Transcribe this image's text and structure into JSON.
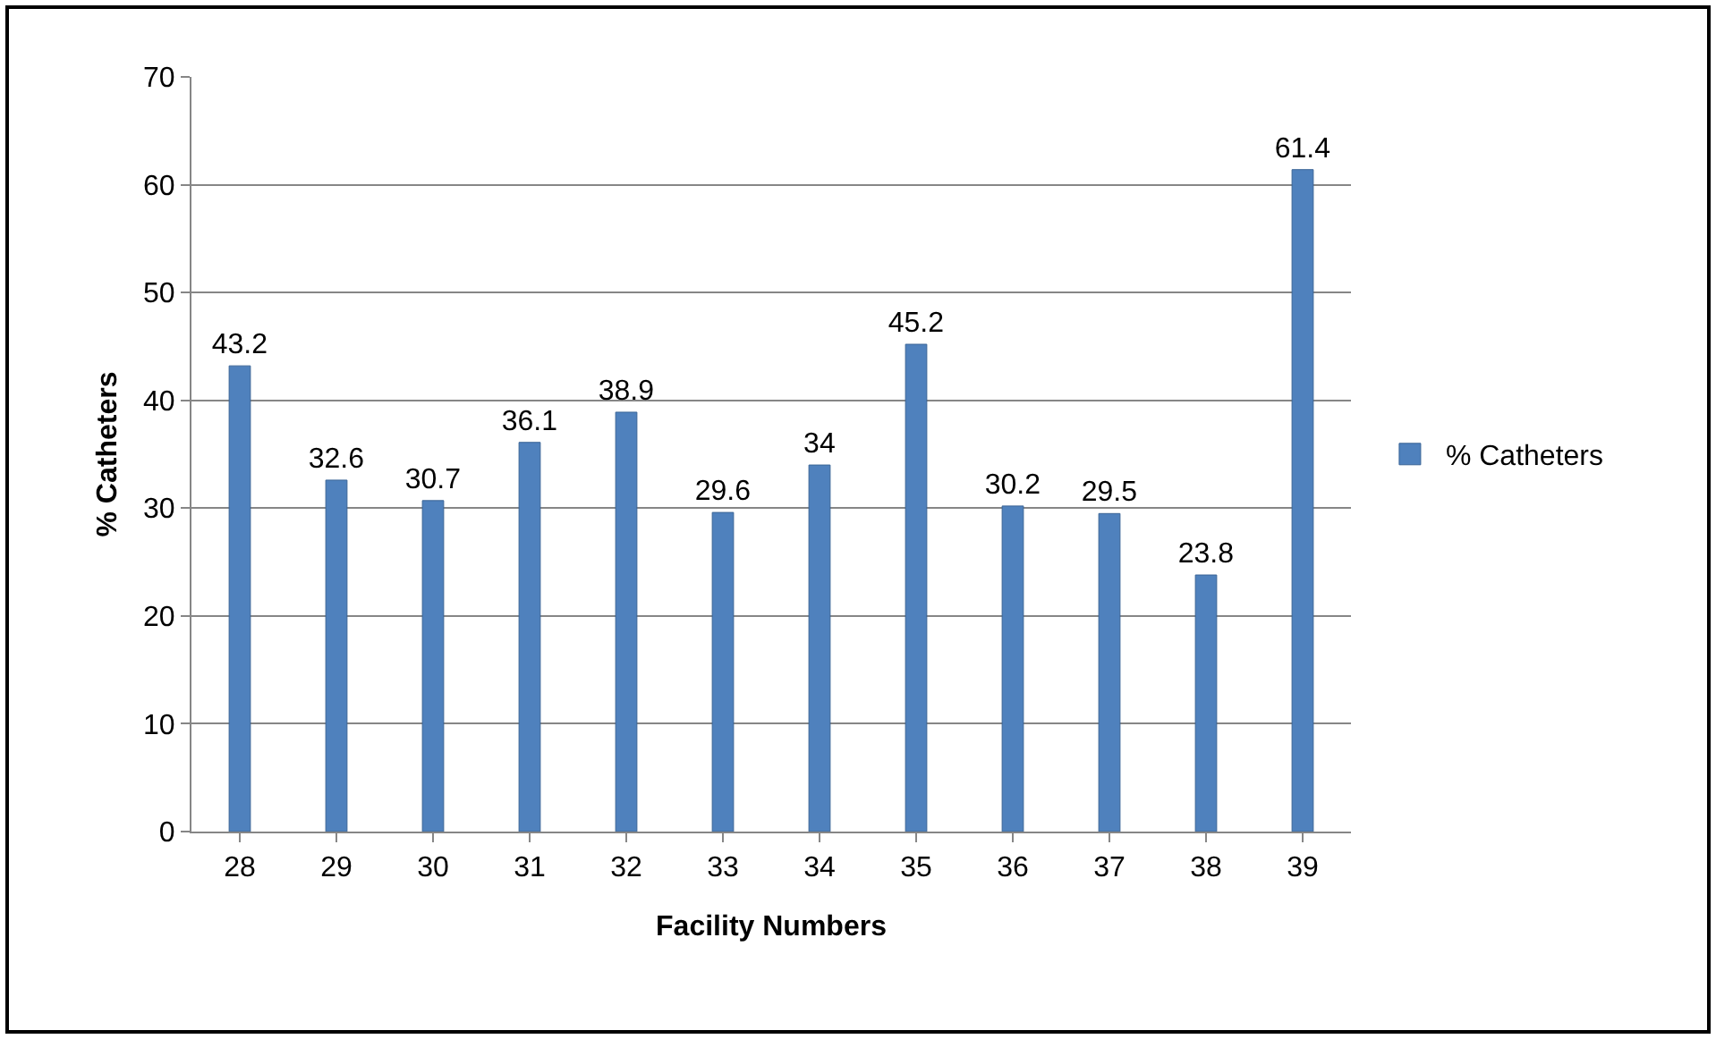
{
  "chart_data": {
    "type": "bar",
    "xlabel": "Facility Numbers",
    "ylabel": "% Catheters",
    "categories": [
      "28",
      "29",
      "30",
      "31",
      "32",
      "33",
      "34",
      "35",
      "36",
      "37",
      "38",
      "39"
    ],
    "series": [
      {
        "name": "% Catheters",
        "color": "#4f81bd",
        "values": [
          43.2,
          32.6,
          30.7,
          36.1,
          38.9,
          29.6,
          34,
          45.2,
          30.2,
          29.5,
          23.8,
          61.4
        ]
      }
    ],
    "ylim": [
      0,
      70
    ],
    "yticks": [
      0,
      10,
      20,
      30,
      40,
      50,
      60,
      70
    ],
    "grid": "y",
    "legend": "right",
    "data_labels": true
  }
}
